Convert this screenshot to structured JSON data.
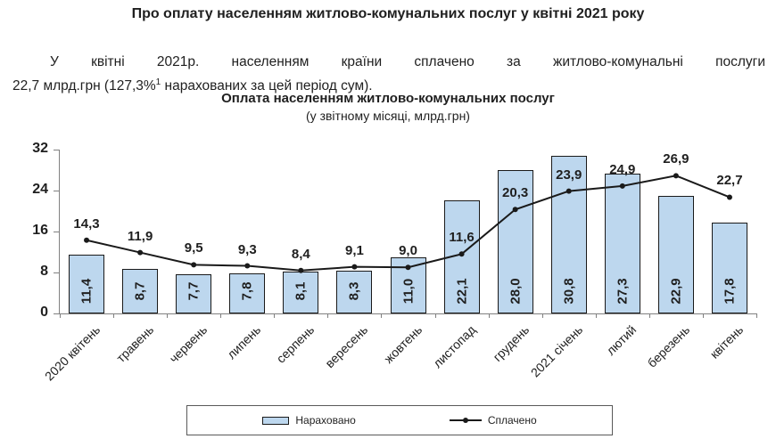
{
  "page": {
    "title": "Про оплату населенням житлово-комунальних послуг у квітні 2021 року",
    "paragraph": {
      "line1": "У квітні 2021р. населенням країни сплачено за житлово-комунальні послуги",
      "line2_before_sup": "22,7 млрд.грн (127,3%",
      "sup": "1",
      "line2_after": "нарахованих за цей період сум)."
    }
  },
  "chart_data": {
    "type": "bar",
    "title": "Оплата населенням житлово-комунальних послуг",
    "subtitle": "(у звітному місяці, млрд.грн)",
    "categories": [
      "2020 квітень",
      "травень",
      "червень",
      "липень",
      "серпень",
      "вересень",
      "жовтень",
      "листопад",
      "грудень",
      "2021 січень",
      "лютий",
      "березень",
      "квітень"
    ],
    "series": [
      {
        "name": "Нараховано",
        "type": "bar",
        "values": [
          11.4,
          8.7,
          7.7,
          7.8,
          8.1,
          8.3,
          11.0,
          22.1,
          28.0,
          30.8,
          27.3,
          22.9,
          17.8
        ]
      },
      {
        "name": "Сплачено",
        "type": "line",
        "values": [
          14.3,
          11.9,
          9.5,
          9.3,
          8.4,
          9.1,
          9.0,
          11.6,
          20.3,
          23.9,
          24.9,
          26.9,
          22.7
        ]
      }
    ],
    "ylim": [
      0,
      32
    ],
    "yticks": [
      0,
      8,
      16,
      24,
      32
    ],
    "xlabel": "",
    "ylabel": "",
    "grid": false,
    "legend_position": "bottom",
    "decimal_separator": ",",
    "colors": {
      "bar_fill": "#BDD7EE",
      "bar_border": "#1a1a1a",
      "line": "#1a1a1a",
      "axis": "#808080",
      "text": "#1f1f1f"
    }
  }
}
